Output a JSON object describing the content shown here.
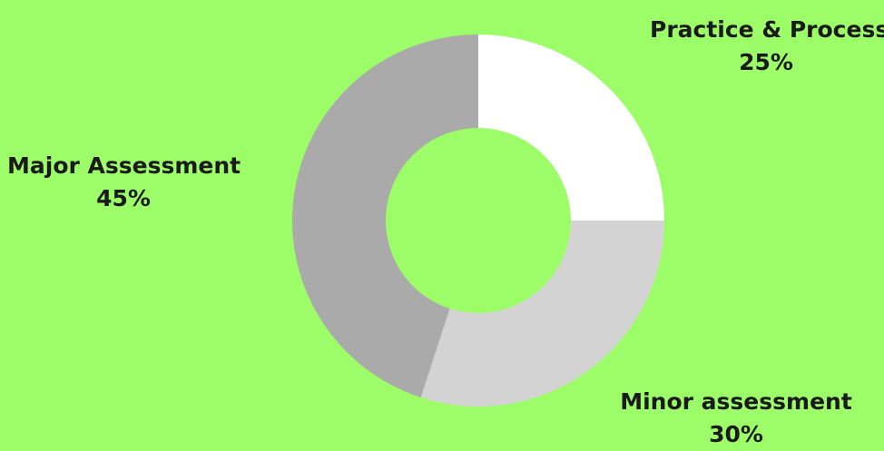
{
  "colors": {
    "background": "#9dfd69",
    "label_text": "#1a1a1a"
  },
  "chart_data": {
    "type": "pie",
    "title": "",
    "donut": true,
    "slices": [
      {
        "label": "Practice & Process",
        "value": 25,
        "value_label": "25%",
        "color": "#ffffff"
      },
      {
        "label": "Minor assessment",
        "value": 30,
        "value_label": "30%",
        "color": "#d3d3d3"
      },
      {
        "label": "Major Assessment",
        "value": 45,
        "value_label": "45%",
        "color": "#aaaaaa"
      }
    ]
  }
}
